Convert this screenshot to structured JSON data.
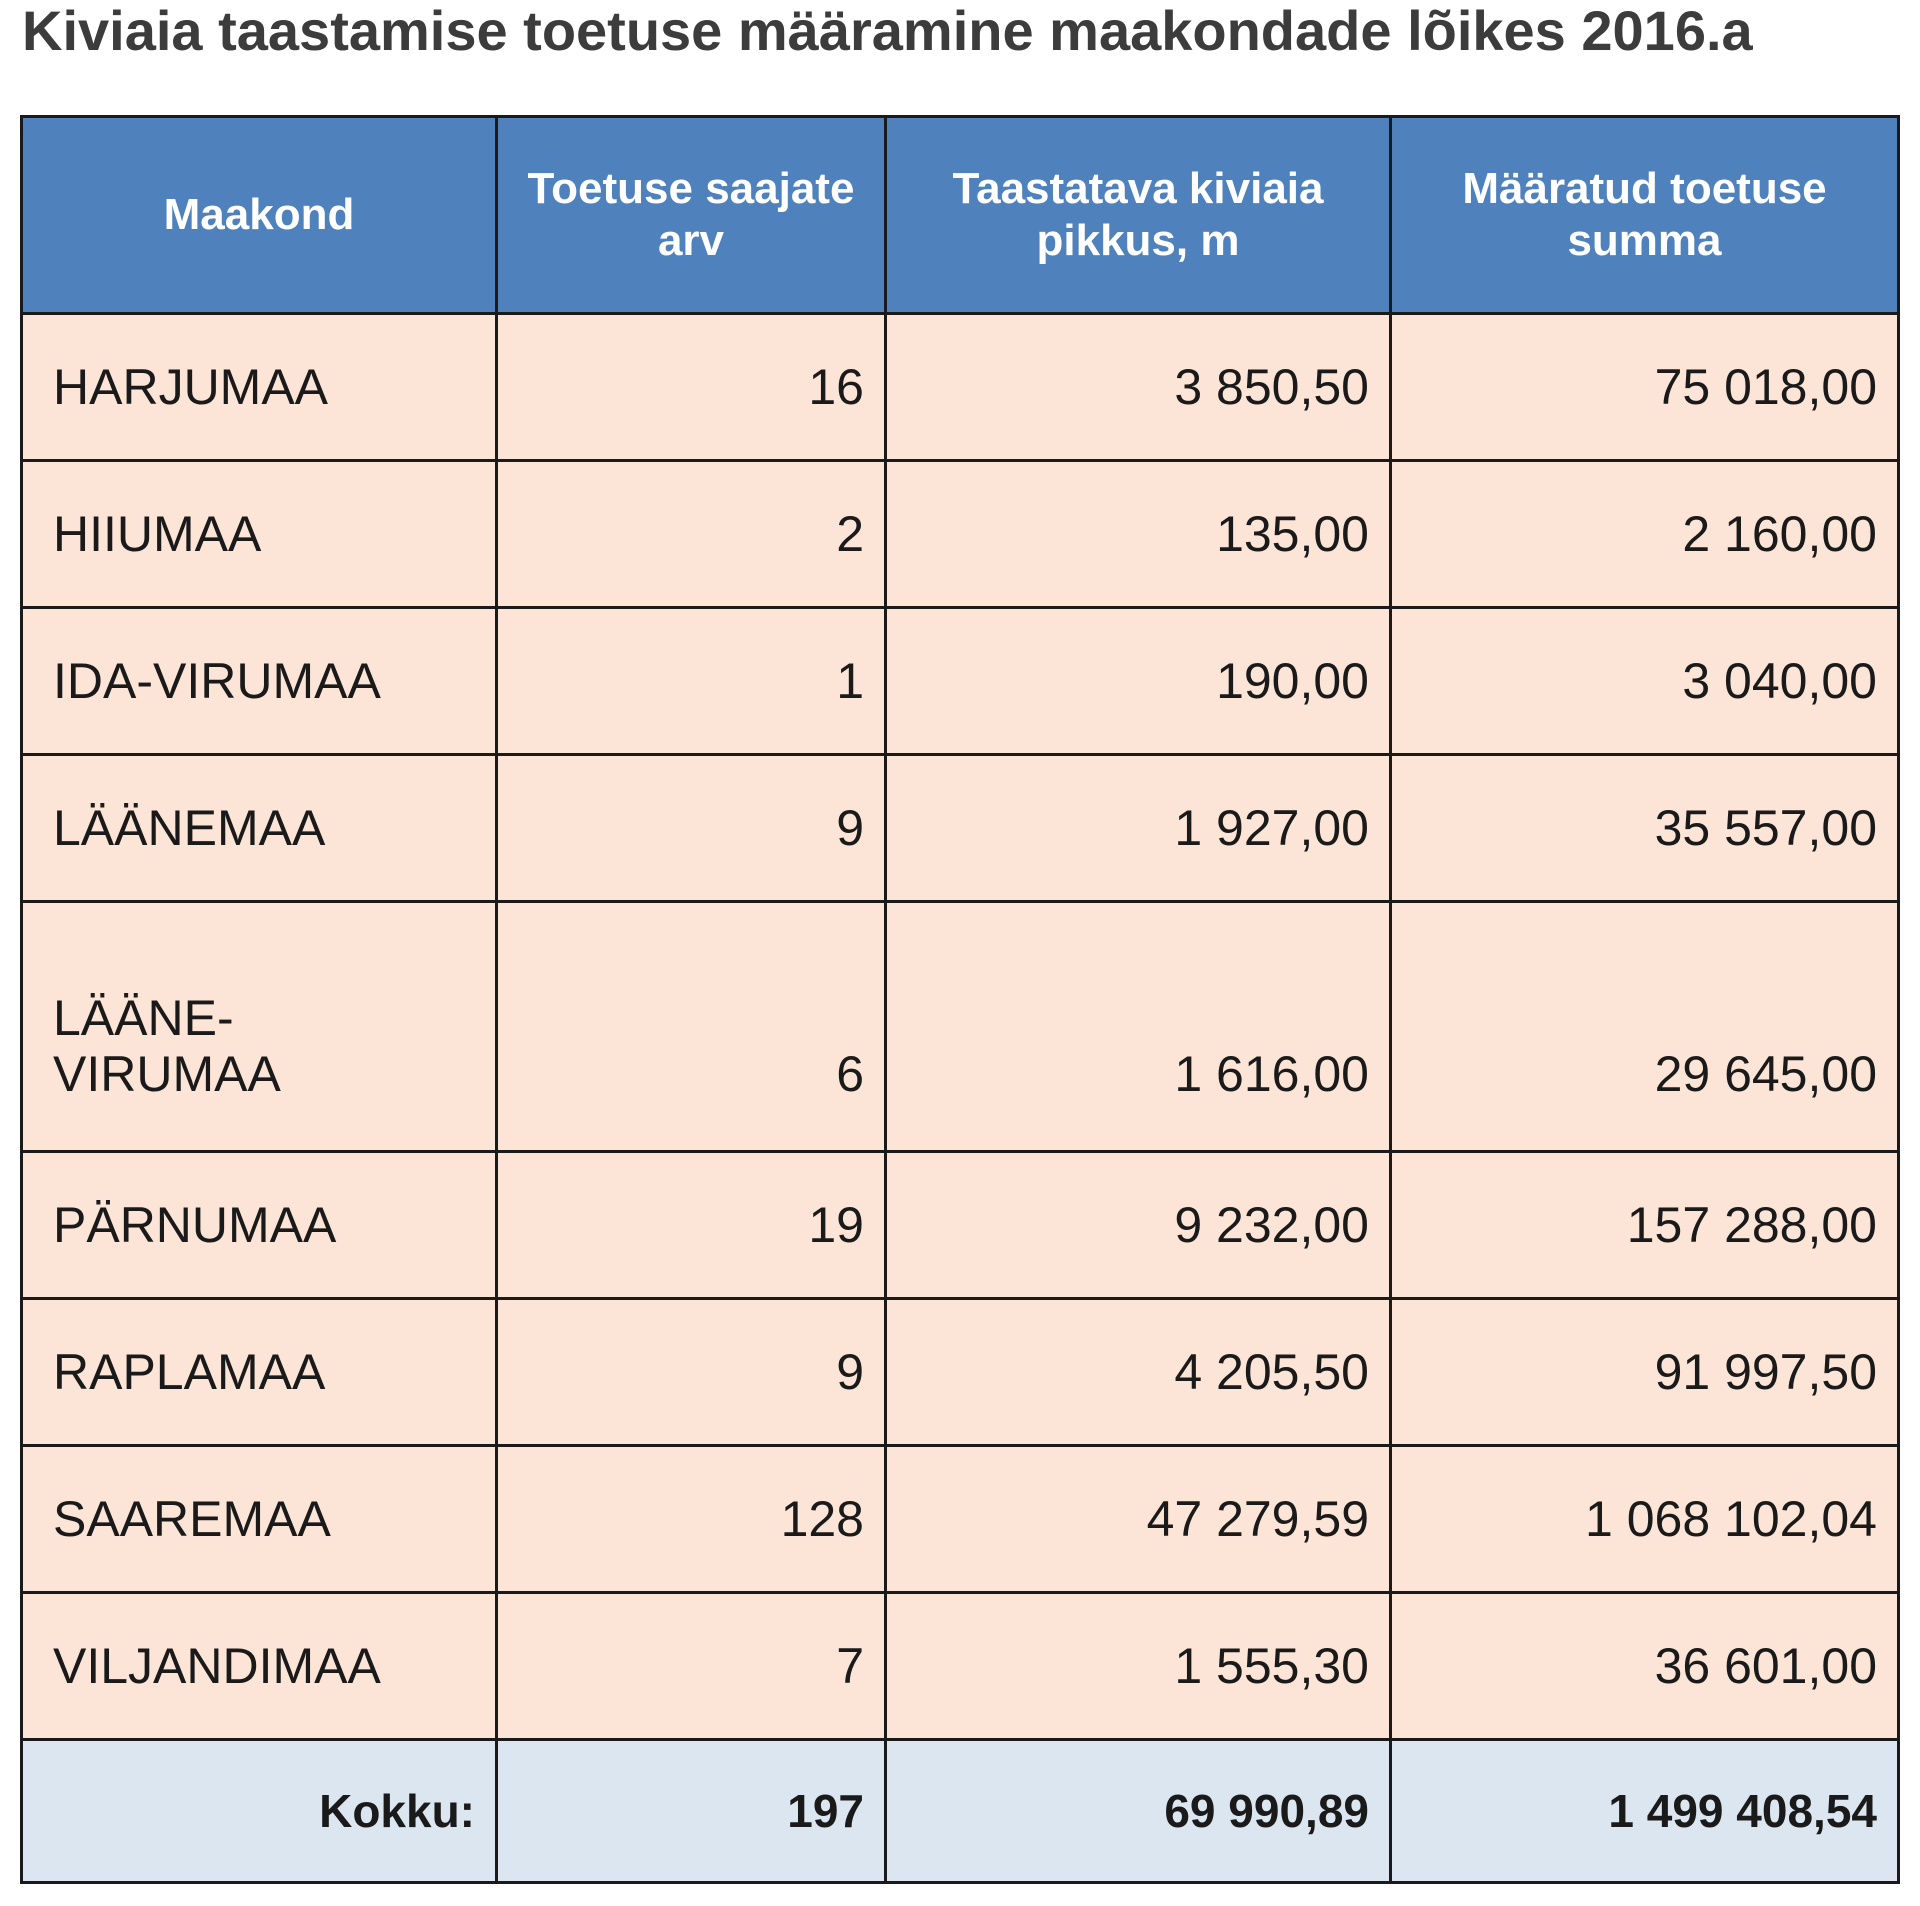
{
  "title": "Kiviaia taastamise toetuse määramine maakondade lõikes 2016.a",
  "table": {
    "headers": [
      "Maakond",
      "Toetuse saajate arv",
      "Taastatava kiviaia pikkus, m",
      "Määratud toetuse summa"
    ],
    "rows": [
      {
        "maakond": "HARJUMAA",
        "saajad": "16",
        "pikkus": "3 850,50",
        "summa": "75 018,00"
      },
      {
        "maakond": "HIIUMAA",
        "saajad": "2",
        "pikkus": "135,00",
        "summa": "2 160,00"
      },
      {
        "maakond": "IDA-VIRUMAA",
        "saajad": "1",
        "pikkus": "190,00",
        "summa": "3 040,00"
      },
      {
        "maakond": "LÄÄNEMAA",
        "saajad": "9",
        "pikkus": "1 927,00",
        "summa": "35 557,00"
      },
      {
        "maakond": "LÄÄNE-VIRUMAA",
        "saajad": "6",
        "pikkus": "1 616,00",
        "summa": "29 645,00"
      },
      {
        "maakond": "PÄRNUMAA",
        "saajad": "19",
        "pikkus": "9 232,00",
        "summa": "157 288,00"
      },
      {
        "maakond": "RAPLAMAA",
        "saajad": "9",
        "pikkus": "4 205,50",
        "summa": "91 997,50"
      },
      {
        "maakond": "SAAREMAA",
        "saajad": "128",
        "pikkus": "47 279,59",
        "summa": "1 068 102,04"
      },
      {
        "maakond": "VILJANDIMAA",
        "saajad": "7",
        "pikkus": "1 555,30",
        "summa": "36 601,00"
      }
    ],
    "total": {
      "label": "Kokku:",
      "saajad": "197",
      "pikkus": "69 990,89",
      "summa": "1 499 408,54"
    }
  }
}
